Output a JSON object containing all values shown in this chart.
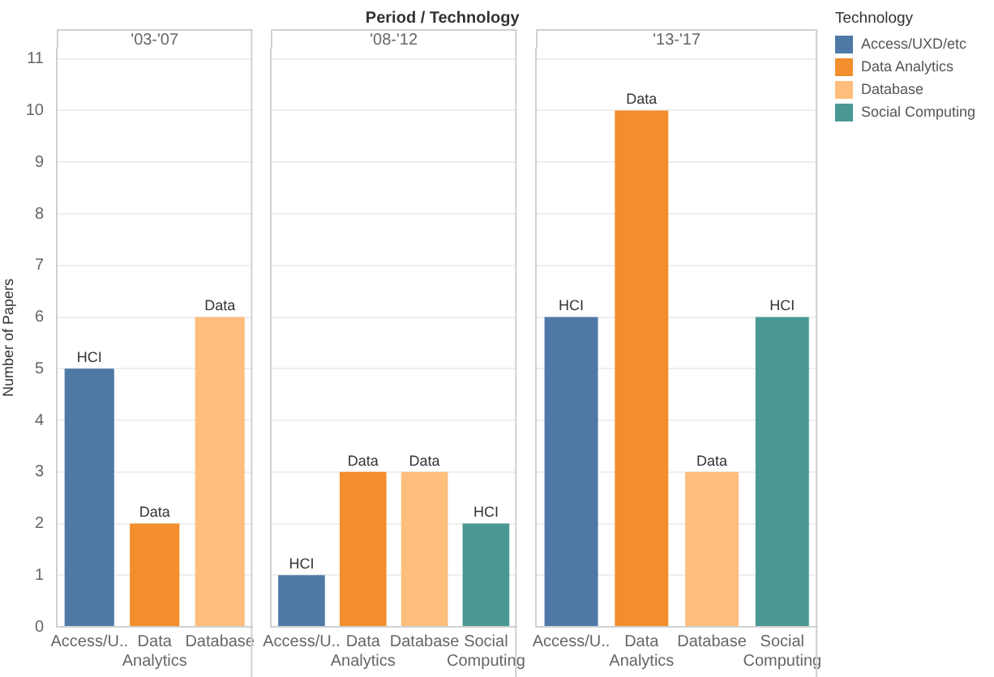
{
  "chart_data": [
    {
      "type": "bar",
      "subtitle": "'03-'07",
      "ylabel": "Number of Papers",
      "categories": [
        "Access/U..",
        "Data Analytics",
        "Database"
      ],
      "ylim": [
        0,
        11.2
      ],
      "yticks": [
        0,
        1,
        2,
        3,
        4,
        5,
        6,
        7,
        8,
        9,
        10,
        11
      ],
      "grid": "y",
      "legend": false,
      "series": [
        {
          "color": "#4e79a7",
          "values": [
            5,
            null,
            null
          ],
          "value_labels": [
            "HCI",
            null,
            null
          ]
        },
        {
          "color": "#f28e2b",
          "values": [
            null,
            2,
            null
          ],
          "value_labels": [
            null,
            "Data",
            null
          ]
        },
        {
          "color": "#ffbe7d",
          "values": [
            null,
            null,
            6
          ],
          "value_labels": [
            null,
            null,
            "Data"
          ]
        }
      ]
    },
    {
      "type": "bar",
      "title": "Period / Technology",
      "subtitle": "'08-'12",
      "categories": [
        "Access/U..",
        "Data Analytics",
        "Database",
        "Social Computing"
      ],
      "ylim": [
        0,
        11.2
      ],
      "yticks": [
        0,
        1,
        2,
        3,
        4,
        5,
        6,
        7,
        8,
        9,
        10,
        11
      ],
      "grid": "y",
      "legend": false,
      "tick_labels": "x",
      "series": [
        {
          "color": "#4e79a7",
          "values": [
            1,
            null,
            null,
            null
          ],
          "value_labels": [
            "HCI",
            null,
            null,
            null
          ]
        },
        {
          "color": "#f28e2b",
          "values": [
            null,
            3,
            null,
            null
          ],
          "value_labels": [
            null,
            "Data",
            null,
            null
          ]
        },
        {
          "color": "#ffbe7d",
          "values": [
            null,
            null,
            3,
            null
          ],
          "value_labels": [
            null,
            null,
            "Data",
            null
          ]
        },
        {
          "color": "#499894",
          "values": [
            null,
            null,
            null,
            2
          ],
          "value_labels": [
            null,
            null,
            null,
            "HCI"
          ]
        }
      ]
    },
    {
      "type": "bar",
      "subtitle": "'13-'17",
      "legend_title": "Technology",
      "categories": [
        "Access/U..",
        "Data Analytics",
        "Database",
        "Social Computing"
      ],
      "ylim": [
        0,
        11.2
      ],
      "yticks": [
        0,
        1,
        2,
        3,
        4,
        5,
        6,
        7,
        8,
        9,
        10,
        11
      ],
      "grid": "y",
      "legend": "top right",
      "tick_labels": "x",
      "series": [
        {
          "name": "Access/UXD/etc",
          "color": "#4e79a7",
          "values": [
            6,
            null,
            null,
            null
          ],
          "value_labels": [
            "HCI",
            null,
            null,
            null
          ]
        },
        {
          "name": "Data Analytics",
          "color": "#f28e2b",
          "values": [
            null,
            10,
            null,
            null
          ],
          "value_labels": [
            null,
            "Data",
            null,
            null
          ]
        },
        {
          "name": "Database",
          "color": "#ffbe7d",
          "values": [
            null,
            null,
            3,
            null
          ],
          "value_labels": [
            null,
            null,
            "Data",
            null
          ]
        },
        {
          "name": "Social Computing",
          "color": "#499894",
          "values": [
            null,
            null,
            null,
            6
          ],
          "value_labels": [
            null,
            null,
            null,
            "HCI"
          ]
        }
      ]
    }
  ]
}
